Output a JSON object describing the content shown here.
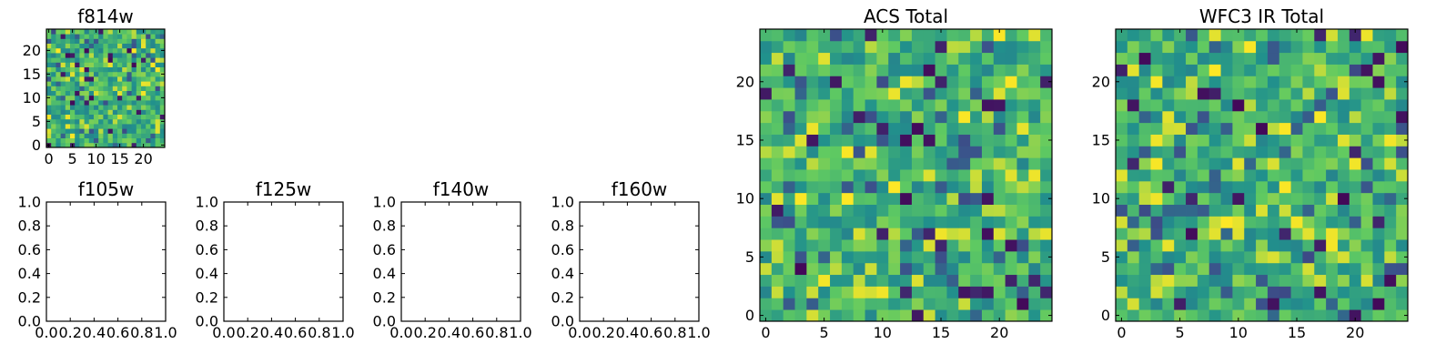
{
  "colormap": [
    "#440154",
    "#3b528b",
    "#21918c",
    "#5ec962",
    "#fde725"
  ],
  "chart_data": [
    {
      "type": "heatmap",
      "title": "f814w",
      "grid": [
        25,
        25
      ],
      "xlim": [
        -0.5,
        24.5
      ],
      "ylim": [
        -0.5,
        24.5
      ],
      "xticks": [
        0,
        5,
        10,
        15,
        20
      ],
      "yticks": [
        0,
        5,
        10,
        15,
        20
      ],
      "xtick_labels": [
        "0",
        "5",
        "10",
        "15",
        "20"
      ],
      "ytick_labels": [
        "0",
        "5",
        "10",
        "15",
        "20"
      ],
      "value_range": [
        0,
        1
      ]
    },
    {
      "type": "heatmap",
      "title": "f105w",
      "empty": true,
      "xlim": [
        0,
        1
      ],
      "ylim": [
        0,
        1
      ],
      "xticks": [
        0,
        0.2,
        0.4,
        0.6,
        0.8,
        1.0
      ],
      "yticks": [
        0,
        0.2,
        0.4,
        0.6,
        0.8,
        1.0
      ],
      "xtick_labels": [
        "0.0",
        "0.2",
        "0.4",
        "0.6",
        "0.8",
        "1.0"
      ],
      "ytick_labels": [
        "0.0",
        "0.2",
        "0.4",
        "0.6",
        "0.8",
        "1.0"
      ]
    },
    {
      "type": "heatmap",
      "title": "f125w",
      "empty": true,
      "xlim": [
        0,
        1
      ],
      "ylim": [
        0,
        1
      ],
      "xticks": [
        0,
        0.2,
        0.4,
        0.6,
        0.8,
        1.0
      ],
      "yticks": [
        0,
        0.2,
        0.4,
        0.6,
        0.8,
        1.0
      ],
      "xtick_labels": [
        "0.0",
        "0.2",
        "0.4",
        "0.6",
        "0.8",
        "1.0"
      ],
      "ytick_labels": [
        "0.0",
        "0.2",
        "0.4",
        "0.6",
        "0.8",
        "1.0"
      ]
    },
    {
      "type": "heatmap",
      "title": "f140w",
      "empty": true,
      "xlim": [
        0,
        1
      ],
      "ylim": [
        0,
        1
      ],
      "xticks": [
        0,
        0.2,
        0.4,
        0.6,
        0.8,
        1.0
      ],
      "yticks": [
        0,
        0.2,
        0.4,
        0.6,
        0.8,
        1.0
      ],
      "xtick_labels": [
        "0.0",
        "0.2",
        "0.4",
        "0.6",
        "0.8",
        "1.0"
      ],
      "ytick_labels": [
        "0.0",
        "0.2",
        "0.4",
        "0.6",
        "0.8",
        "1.0"
      ]
    },
    {
      "type": "heatmap",
      "title": "f160w",
      "empty": true,
      "xlim": [
        0,
        1
      ],
      "ylim": [
        0,
        1
      ],
      "xticks": [
        0,
        0.2,
        0.4,
        0.6,
        0.8,
        1.0
      ],
      "yticks": [
        0,
        0.2,
        0.4,
        0.6,
        0.8,
        1.0
      ],
      "xtick_labels": [
        "0.0",
        "0.2",
        "0.4",
        "0.6",
        "0.8",
        "1.0"
      ],
      "ytick_labels": [
        "0.0",
        "0.2",
        "0.4",
        "0.6",
        "0.8",
        "1.0"
      ]
    },
    {
      "type": "heatmap",
      "title": "ACS Total",
      "grid": [
        25,
        25
      ],
      "xlim": [
        -0.5,
        24.5
      ],
      "ylim": [
        -0.5,
        24.5
      ],
      "xticks": [
        0,
        5,
        10,
        15,
        20
      ],
      "yticks": [
        0,
        5,
        10,
        15,
        20
      ],
      "xtick_labels": [
        "0",
        "5",
        "10",
        "15",
        "20"
      ],
      "ytick_labels": [
        "0",
        "5",
        "10",
        "15",
        "20"
      ],
      "value_range": [
        0,
        1
      ]
    },
    {
      "type": "heatmap",
      "title": "WFC3 IR Total",
      "grid": [
        25,
        25
      ],
      "xlim": [
        -0.5,
        24.5
      ],
      "ylim": [
        -0.5,
        24.5
      ],
      "xticks": [
        0,
        5,
        10,
        15,
        20
      ],
      "yticks": [
        0,
        5,
        10,
        15,
        20
      ],
      "xtick_labels": [
        "0",
        "5",
        "10",
        "15",
        "20"
      ],
      "ytick_labels": [
        "0",
        "5",
        "10",
        "15",
        "20"
      ],
      "value_range": [
        0,
        1
      ]
    }
  ]
}
